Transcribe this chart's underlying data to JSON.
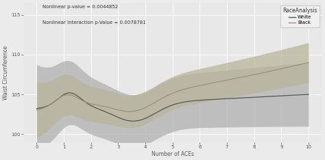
{
  "annotation_line1": "Nonlinear p-value = 0.0044852",
  "annotation_line2": "Nonlinear Interaction p-Value = 0.0078781",
  "legend_title": "RaceAnalysis",
  "white_color": "#555555",
  "black_color": "#9a9170",
  "white_fill": "#b0b0b0",
  "black_fill": "#b8b49a",
  "xlabel": "Number of ACEs",
  "ylabel": "Waist Circumference",
  "xlim": [
    -0.5,
    10.5
  ],
  "ylim": [
    99.0,
    116.5
  ],
  "yticks": [
    100,
    105,
    110,
    115
  ],
  "xticks": [
    0,
    1,
    2,
    3,
    4,
    5,
    6,
    7,
    8,
    9,
    10
  ],
  "bg_color": "#ebebeb",
  "panel_bg": "#e8e8e8"
}
